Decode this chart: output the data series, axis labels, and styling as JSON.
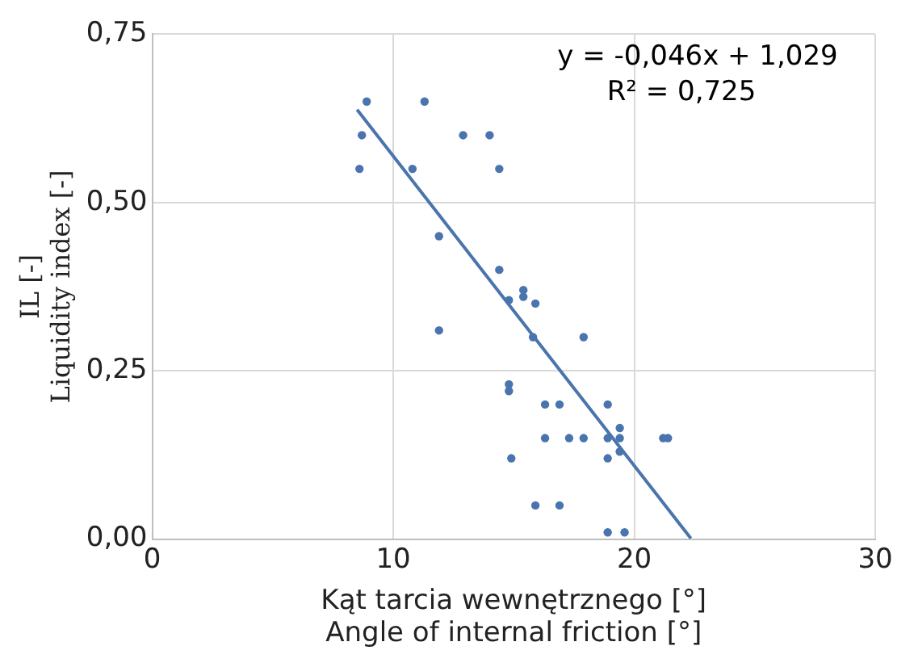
{
  "chart_data": {
    "type": "scatter",
    "xlabel": "Kąt tarcia wewnętrznego [°]\nAngle of internal friction [°]",
    "ylabel": "IL [-]\nLiquidity index [-]",
    "xlim": [
      0,
      30
    ],
    "xticks": [
      0,
      10,
      20,
      30
    ],
    "ylim": [
      0,
      0.75
    ],
    "yticks": [
      {
        "value": 0,
        "label": "0,00"
      },
      {
        "value": 0.25,
        "label": "0,25"
      },
      {
        "value": 0.5,
        "label": "0,50"
      },
      {
        "value": 0.75,
        "label": "0,75"
      }
    ],
    "grid": true,
    "legend": false,
    "annotations": [
      "y = -0,046x + 1,029",
      "R² = 0,725"
    ],
    "series": [
      {
        "marker": "circle",
        "color": "#4a74ad",
        "x": [
          8.6,
          8.7,
          8.9,
          11.3,
          10.8,
          12.9,
          14.0,
          14.4,
          11.9,
          11.9,
          14.4,
          14.8,
          15.4,
          15.4,
          15.9,
          15.8,
          17.9,
          14.8,
          14.8,
          16.3,
          16.9,
          14.9,
          18.9,
          16.3,
          17.3,
          17.9,
          18.9,
          19.4,
          19.4,
          19.4,
          18.9,
          21.2,
          21.4,
          15.9,
          16.9,
          18.9,
          19.6
        ],
        "values": [
          0.55,
          0.6,
          0.65,
          0.65,
          0.55,
          0.6,
          0.6,
          0.55,
          0.45,
          0.31,
          0.4,
          0.355,
          0.36,
          0.37,
          0.35,
          0.3,
          0.3,
          0.22,
          0.23,
          0.2,
          0.2,
          0.12,
          0.2,
          0.15,
          0.15,
          0.15,
          0.15,
          0.165,
          0.15,
          0.13,
          0.12,
          0.15,
          0.15,
          0.05,
          0.05,
          0.01,
          0.01
        ]
      },
      {
        "type": "line",
        "marker": "none",
        "color": "#4a74ad",
        "x": [
          8.5,
          22.35
        ],
        "values": [
          0.638,
          0.001
        ]
      }
    ]
  }
}
